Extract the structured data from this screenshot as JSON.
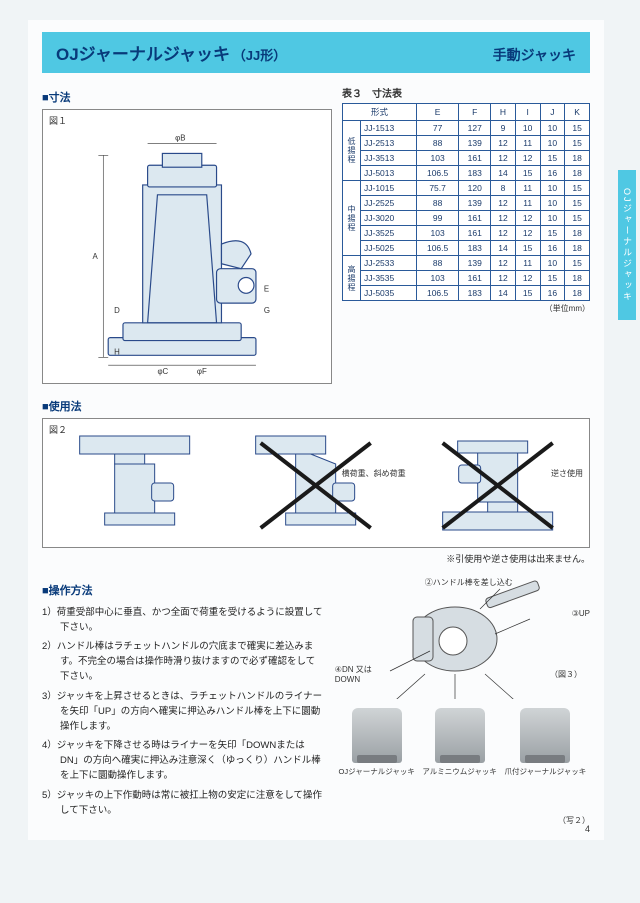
{
  "title": {
    "product": "OJジャーナルジャッキ",
    "form": "（JJ形）",
    "category": "手動ジャッキ"
  },
  "side_tab": "OJジャーナルジャッキ",
  "labels": {
    "dimensions": "■寸法",
    "usage": "■使用法",
    "operation": "■操作方法",
    "fig1": "図１",
    "fig2": "図２",
    "fig3": "（図３）",
    "photo2": "（写２）",
    "table_title": "表３　寸法表",
    "unit": "（単位mm）",
    "usage_note": "※引使用や逆さ使用は出来ません。",
    "lateral": "横荷重、斜め荷重",
    "inverted": "逆さ使用"
  },
  "table": {
    "headers": [
      "形式",
      "E",
      "F",
      "H",
      "I",
      "J",
      "K"
    ],
    "groups": [
      {
        "name": "低揚程",
        "rows": [
          [
            "JJ-1513",
            "77",
            "127",
            "9",
            "10",
            "10",
            "15"
          ],
          [
            "JJ-2513",
            "88",
            "139",
            "12",
            "11",
            "10",
            "15"
          ],
          [
            "JJ-3513",
            "103",
            "161",
            "12",
            "12",
            "15",
            "18"
          ],
          [
            "JJ-5013",
            "106.5",
            "183",
            "14",
            "15",
            "16",
            "18"
          ]
        ]
      },
      {
        "name": "中揚程",
        "rows": [
          [
            "JJ-1015",
            "75.7",
            "120",
            "8",
            "11",
            "10",
            "15"
          ],
          [
            "JJ-2525",
            "88",
            "139",
            "12",
            "11",
            "10",
            "15"
          ],
          [
            "JJ-3020",
            "99",
            "161",
            "12",
            "12",
            "10",
            "15"
          ],
          [
            "JJ-3525",
            "103",
            "161",
            "12",
            "12",
            "15",
            "18"
          ],
          [
            "JJ-5025",
            "106.5",
            "183",
            "14",
            "15",
            "16",
            "18"
          ]
        ]
      },
      {
        "name": "高揚程",
        "rows": [
          [
            "JJ-2533",
            "88",
            "139",
            "12",
            "11",
            "10",
            "15"
          ],
          [
            "JJ-3535",
            "103",
            "161",
            "12",
            "12",
            "15",
            "18"
          ],
          [
            "JJ-5035",
            "106.5",
            "183",
            "14",
            "15",
            "16",
            "18"
          ]
        ]
      }
    ]
  },
  "diagram_labels": [
    "φB",
    "A",
    "D",
    "E",
    "G",
    "H",
    "φC",
    "φF"
  ],
  "operation_steps": [
    "荷重受部中心に垂直、かつ全面で荷重を受けるように設置して下さい。",
    "ハンドル棒はラチェットハンドルの穴底まで確実に差込みます。不完全の場合は操作時滑り抜けますので必ず確認をして下さい。",
    "ジャッキを上昇させるときは、ラチェットハンドルのライナーを矢印「UP」の方向へ確実に押込みハンドル棒を上下に圜動操作します。",
    "ジャッキを下降させる時はライナーを矢印「DOWNまたはDN」の方向へ確実に押込み注意深く（ゆっくり）ハンドル棒を上下に圜動操作します。",
    "ジャッキの上下作動時は常に被扛上物の安定に注意をして操作して下さい。"
  ],
  "callouts": {
    "c2": "②ハンドル棒を差し込む",
    "c3": "③UP",
    "c4": "④DN 又はDOWN"
  },
  "photos": [
    "OJジャーナルジャッキ",
    "アルミニウムジャッキ",
    "爪付ジャーナルジャッキ"
  ],
  "page_number": "4",
  "colors": {
    "brand_cyan": "#4fc8e3",
    "brand_navy": "#083a7a",
    "table_border": "#2a5a9a",
    "jack_fill": "#dce8f0",
    "jack_stroke": "#2a4a8a"
  }
}
